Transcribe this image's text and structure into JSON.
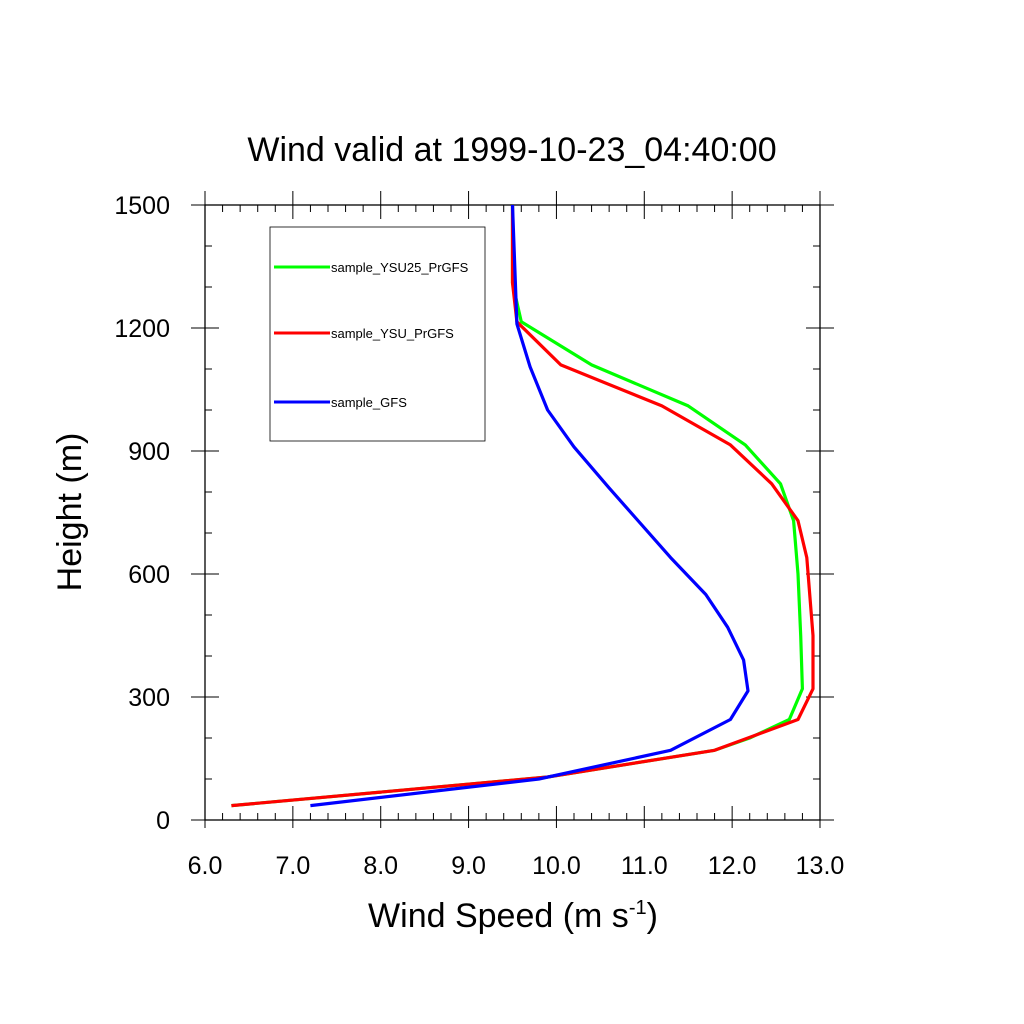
{
  "chart_data": {
    "type": "line",
    "title": "Wind valid at 1999-10-23_04:40:00",
    "xlabel": "Wind Speed (m s",
    "xlabel_sup": "-1",
    "xlabel_suffix": ")",
    "ylabel": "Height (m)",
    "xlim": [
      6.0,
      13.0
    ],
    "ylim": [
      0,
      1500
    ],
    "xticks": [
      "6.0",
      "7.0",
      "8.0",
      "9.0",
      "10.0",
      "11.0",
      "12.0",
      "13.0"
    ],
    "yticks": [
      "0",
      "300",
      "600",
      "900",
      "1200",
      "1500"
    ],
    "grid": false,
    "legend_position": "top-left",
    "series": [
      {
        "name": "sample_YSU25_PrGFS",
        "color": "#00ff00",
        "points": [
          [
            6.3,
            35
          ],
          [
            9.9,
            105
          ],
          [
            11.8,
            170
          ],
          [
            12.2,
            200
          ],
          [
            12.65,
            245
          ],
          [
            12.8,
            320
          ],
          [
            12.78,
            450
          ],
          [
            12.75,
            600
          ],
          [
            12.7,
            730
          ],
          [
            12.55,
            820
          ],
          [
            12.15,
            915
          ],
          [
            11.5,
            1010
          ],
          [
            10.4,
            1110
          ],
          [
            9.6,
            1215
          ],
          [
            9.5,
            1310
          ],
          [
            9.5,
            1400
          ],
          [
            9.5,
            1500
          ]
        ]
      },
      {
        "name": "sample_YSU_PrGFS",
        "color": "#ff0000",
        "points": [
          [
            6.3,
            35
          ],
          [
            9.9,
            105
          ],
          [
            11.8,
            170
          ],
          [
            12.75,
            245
          ],
          [
            12.92,
            320
          ],
          [
            12.92,
            450
          ],
          [
            12.85,
            640
          ],
          [
            12.75,
            730
          ],
          [
            12.45,
            820
          ],
          [
            11.98,
            915
          ],
          [
            11.2,
            1010
          ],
          [
            10.05,
            1110
          ],
          [
            9.55,
            1215
          ],
          [
            9.5,
            1310
          ],
          [
            9.5,
            1500
          ]
        ]
      },
      {
        "name": "sample_GFS",
        "color": "#0000ff",
        "points": [
          [
            7.2,
            35
          ],
          [
            9.8,
            100
          ],
          [
            11.3,
            170
          ],
          [
            11.98,
            245
          ],
          [
            12.18,
            315
          ],
          [
            12.13,
            390
          ],
          [
            11.95,
            470
          ],
          [
            11.7,
            550
          ],
          [
            11.3,
            640
          ],
          [
            10.6,
            810
          ],
          [
            10.2,
            910
          ],
          [
            9.9,
            1000
          ],
          [
            9.7,
            1105
          ],
          [
            9.55,
            1210
          ],
          [
            9.5,
            1500
          ]
        ]
      }
    ]
  }
}
